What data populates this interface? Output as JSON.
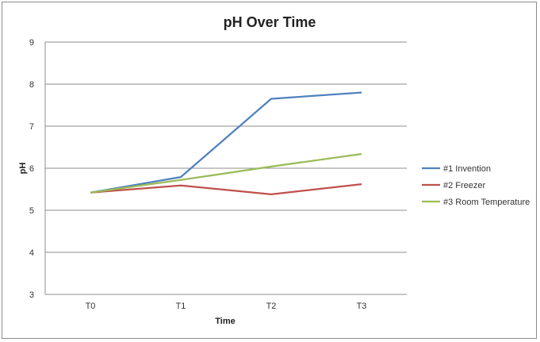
{
  "chart_data": {
    "type": "line",
    "title": "pH Over Time",
    "xlabel": "Time",
    "ylabel": "pH",
    "categories": [
      "T0",
      "T1",
      "T2",
      "T3"
    ],
    "ylim": [
      3,
      9
    ],
    "yticks": [
      3,
      4,
      5,
      6,
      7,
      8,
      9
    ],
    "grid": true,
    "legend_position": "right",
    "series": [
      {
        "name": "#1 Invention",
        "color": "#4f81bd",
        "values": [
          5.42,
          5.79,
          7.65,
          7.8
        ]
      },
      {
        "name": "#2 Freezer",
        "color": "#c0504d",
        "values": [
          5.42,
          5.59,
          5.38,
          5.62
        ]
      },
      {
        "name": "#3 Room Temperature",
        "color": "#9bbb59",
        "values": [
          5.42,
          5.72,
          6.04,
          6.34
        ]
      }
    ]
  }
}
